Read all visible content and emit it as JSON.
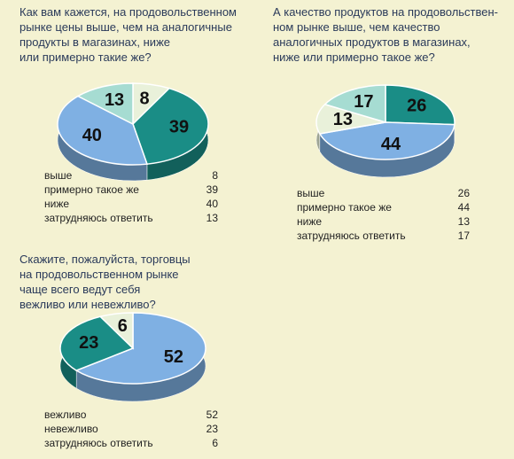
{
  "chart_data": [
    {
      "type": "pie",
      "title": [
        "Как вам кажется, на продовольственном",
        "рынке цены выше, чем на аналогичные",
        "продукты в магазинах, ниже",
        "или примерно такие же?"
      ],
      "categories": [
        "выше",
        "примерно такое же",
        "ниже",
        "затрудняюсь ответить"
      ],
      "values": [
        8,
        39,
        40,
        13
      ],
      "colors": [
        "#e9f1da",
        "#1a8d86",
        "#7fb0e3",
        "#a6dcd2"
      ]
    },
    {
      "type": "pie",
      "title": [
        "А качество продуктов на продовольствен-",
        "ном рынке выше, чем качество",
        "аналогичных продуктов в магазинах,",
        "ниже или примерно такое же?"
      ],
      "categories": [
        "выше",
        "примерно такое же",
        "ниже",
        "затрудняюсь ответить"
      ],
      "values": [
        26,
        44,
        13,
        17
      ],
      "colors": [
        "#1a8d86",
        "#7fb0e3",
        "#e9f1da",
        "#a6dcd2"
      ]
    },
    {
      "type": "pie",
      "title": [
        "Скажите, пожалуйста, торговцы",
        "на продовольственном рынке",
        "чаще всего ведут себя",
        "вежливо или невежливо?"
      ],
      "categories": [
        "вежливо",
        "невежливо",
        "затрудняюсь ответить"
      ],
      "values": [
        52,
        23,
        6
      ],
      "colors": [
        "#7fb0e3",
        "#1a8d86",
        "#e9f1da"
      ]
    }
  ]
}
